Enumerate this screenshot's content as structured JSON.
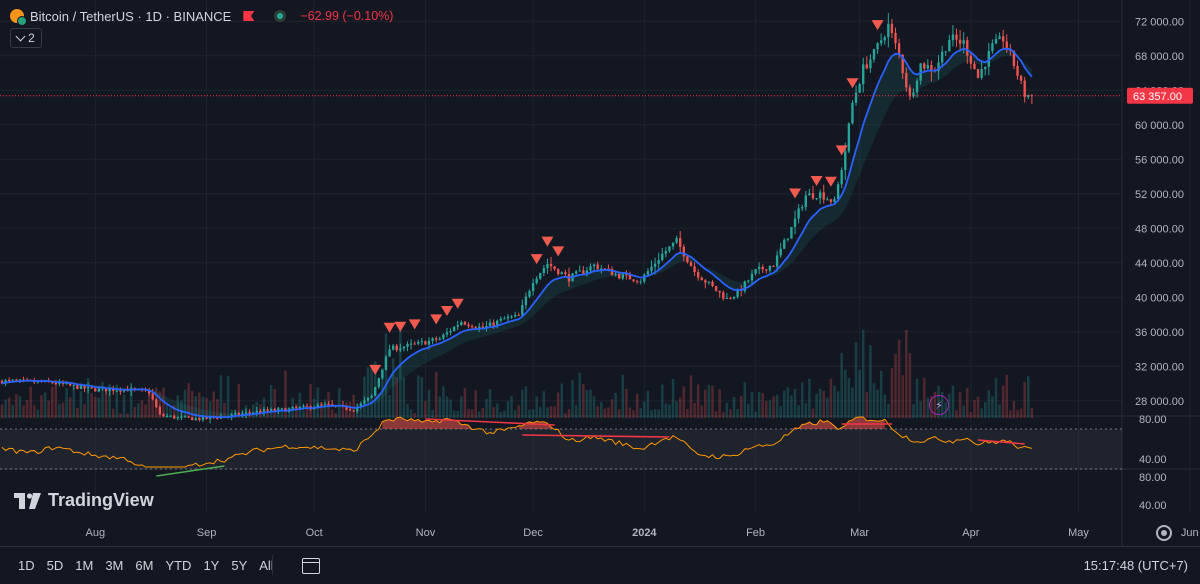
{
  "header": {
    "symbol": "Bitcoin / TetherUS · 1D · BINANCE",
    "change": "−62.99 (−0.10%)",
    "collapse_count": "2"
  },
  "logo_text": "TradingView",
  "toolbar": {
    "timeframes": [
      "1D",
      "5D",
      "1M",
      "3M",
      "6M",
      "YTD",
      "1Y",
      "5Y",
      "All"
    ],
    "clock": "15:17:48 (UTC+7)"
  },
  "colors": {
    "background": "#131722",
    "up": "#26a69a",
    "down": "#ef5350",
    "ema": "#2962ff",
    "rsi": "#ff9800",
    "signal": "#f05a4f"
  },
  "chart_data": [
    {
      "type": "candlestick",
      "y_ticks": [
        {
          "label": "72 000.00",
          "value": 72000
        },
        {
          "label": "68 000.00",
          "value": 68000
        },
        {
          "label": "64 000.00",
          "value": 64000
        },
        {
          "label": "60 000.00",
          "value": 60000
        },
        {
          "label": "56 000.00",
          "value": 56000
        },
        {
          "label": "52 000.00",
          "value": 52000
        },
        {
          "label": "48 000.00",
          "value": 48000
        },
        {
          "label": "44 000.00",
          "value": 44000
        },
        {
          "label": "40 000.00",
          "value": 40000
        },
        {
          "label": "36 000.00",
          "value": 36000
        },
        {
          "label": "32 000.00",
          "value": 32000
        },
        {
          "label": "28 000.00",
          "value": 28000
        }
      ],
      "ylim": [
        26000,
        74000
      ],
      "last_price": 63357,
      "last_price_label": "63 357.00",
      "x_ticks": [
        {
          "label": "Aug",
          "day": 26
        },
        {
          "label": "Sep",
          "day": 57
        },
        {
          "label": "Oct",
          "day": 87
        },
        {
          "label": "Nov",
          "day": 118
        },
        {
          "label": "Dec",
          "day": 148
        },
        {
          "label": "2024",
          "day": 179,
          "bold": true
        },
        {
          "label": "Feb",
          "day": 210
        },
        {
          "label": "Mar",
          "day": 239
        },
        {
          "label": "Apr",
          "day": 270
        },
        {
          "label": "May",
          "day": 300
        },
        {
          "label": "Jun",
          "day": 331
        }
      ],
      "xlim_days": [
        0,
        345
      ],
      "close_anchors": [
        [
          0,
          30300
        ],
        [
          14,
          30100
        ],
        [
          25,
          29300
        ],
        [
          35,
          29300
        ],
        [
          41,
          29000
        ],
        [
          44,
          26300
        ],
        [
          50,
          26000
        ],
        [
          56,
          25900
        ],
        [
          63,
          26200
        ],
        [
          70,
          26700
        ],
        [
          80,
          27000
        ],
        [
          90,
          27500
        ],
        [
          98,
          27000
        ],
        [
          103,
          28500
        ],
        [
          108,
          34000
        ],
        [
          115,
          34500
        ],
        [
          122,
          35200
        ],
        [
          128,
          37200
        ],
        [
          134,
          36400
        ],
        [
          140,
          37500
        ],
        [
          144,
          37800
        ],
        [
          148,
          42000
        ],
        [
          152,
          43900
        ],
        [
          158,
          42200
        ],
        [
          165,
          43700
        ],
        [
          172,
          42500
        ],
        [
          178,
          42000
        ],
        [
          184,
          45000
        ],
        [
          188,
          46500
        ],
        [
          193,
          43000
        ],
        [
          197,
          41500
        ],
        [
          202,
          39800
        ],
        [
          205,
          40500
        ],
        [
          210,
          43000
        ],
        [
          215,
          43800
        ],
        [
          220,
          48000
        ],
        [
          224,
          51800
        ],
        [
          228,
          52000
        ],
        [
          232,
          51000
        ],
        [
          235,
          57000
        ],
        [
          237,
          62500
        ],
        [
          240,
          66500
        ],
        [
          243,
          68200
        ],
        [
          247,
          71500
        ],
        [
          250,
          68000
        ],
        [
          253,
          63000
        ],
        [
          256,
          67000
        ],
        [
          260,
          66500
        ],
        [
          264,
          70000
        ],
        [
          268,
          69500
        ],
        [
          272,
          65500
        ],
        [
          276,
          69000
        ],
        [
          279,
          70000
        ],
        [
          282,
          67000
        ],
        [
          285,
          63500
        ],
        [
          287,
          63357
        ]
      ],
      "sell_signals": [
        104,
        108,
        111,
        115,
        121,
        124,
        127,
        149,
        152,
        155,
        221,
        227,
        231,
        234,
        237,
        244
      ],
      "indicators": [
        "EMA",
        "volume"
      ]
    },
    {
      "type": "line",
      "indicator": "RSI",
      "y_ticks": [
        {
          "label": "80.00",
          "value": 80
        },
        {
          "label": "40.00",
          "value": 40
        }
      ],
      "ylim": [
        31,
        83
      ],
      "bands": [
        70,
        30
      ],
      "rsi_anchors": [
        [
          0,
          50
        ],
        [
          8,
          46
        ],
        [
          15,
          52
        ],
        [
          25,
          44
        ],
        [
          35,
          40
        ],
        [
          40,
          30
        ],
        [
          44,
          20
        ],
        [
          50,
          30
        ],
        [
          56,
          36
        ],
        [
          63,
          40
        ],
        [
          70,
          48
        ],
        [
          80,
          53
        ],
        [
          90,
          51
        ],
        [
          98,
          48
        ],
        [
          103,
          64
        ],
        [
          107,
          79
        ],
        [
          112,
          80
        ],
        [
          118,
          76
        ],
        [
          124,
          80
        ],
        [
          130,
          73
        ],
        [
          136,
          66
        ],
        [
          142,
          70
        ],
        [
          148,
          77
        ],
        [
          153,
          74
        ],
        [
          158,
          58
        ],
        [
          165,
          62
        ],
        [
          172,
          56
        ],
        [
          178,
          50
        ],
        [
          184,
          60
        ],
        [
          188,
          62
        ],
        [
          193,
          46
        ],
        [
          197,
          43
        ],
        [
          203,
          42
        ],
        [
          208,
          51
        ],
        [
          215,
          55
        ],
        [
          220,
          67
        ],
        [
          224,
          74
        ],
        [
          229,
          78
        ],
        [
          234,
          70
        ],
        [
          238,
          81
        ],
        [
          242,
          80
        ],
        [
          246,
          78
        ],
        [
          251,
          63
        ],
        [
          255,
          58
        ],
        [
          260,
          60
        ],
        [
          265,
          58
        ],
        [
          268,
          62
        ],
        [
          272,
          55
        ],
        [
          276,
          57
        ],
        [
          280,
          58
        ],
        [
          284,
          51
        ],
        [
          287,
          49
        ]
      ],
      "overbought_zones": [
        [
          106,
          132
        ],
        [
          144,
          156
        ],
        [
          218,
          246
        ]
      ],
      "oversold_zones": [
        [
          39,
          56
        ]
      ],
      "divergence_lines": [
        [
          [
            118,
            80
          ],
          [
            154,
            74
          ]
        ],
        [
          [
            145,
            64
          ],
          [
            186,
            62
          ]
        ],
        [
          [
            234,
            75
          ],
          [
            248,
            75
          ]
        ],
        [
          [
            272,
            59
          ],
          [
            285,
            55
          ]
        ],
        [
          [
            43,
            23
          ],
          [
            62,
            33
          ]
        ]
      ]
    },
    {
      "type": "axis",
      "indicator": "lower-pane",
      "y_ticks": [
        {
          "label": "80.00",
          "value": 80
        },
        {
          "label": "40.00",
          "value": 40
        }
      ]
    }
  ]
}
